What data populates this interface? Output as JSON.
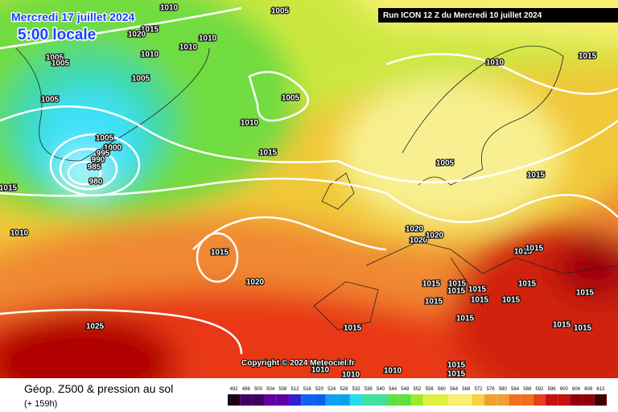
{
  "header": {
    "date": "Mercredi 17 juillet 2024",
    "time": "5:00 locale",
    "run": "Run ICON 12 Z du Mercredi 10 juillet 2024"
  },
  "copyright": "Copyright © 2024 Meteociel.fr",
  "footer": {
    "title": "Géop. Z500 & pression au sol",
    "lead": "(+ 159h)"
  },
  "isobar_labels": [
    1010,
    1005,
    1015,
    1020,
    1010,
    1010,
    1010,
    1005,
    1005,
    1005,
    1005,
    1005,
    1010,
    1005,
    1000,
    995,
    990,
    985,
    980,
    1015,
    1015,
    1010,
    1015,
    1005,
    1015,
    1010,
    1015,
    1020,
    1020,
    1020,
    1020,
    1015,
    1015,
    1015,
    1015,
    1015,
    1015,
    1015,
    1015,
    1015,
    1015,
    1015,
    1015,
    1015,
    1015,
    1015,
    1025,
    1010,
    1010,
    1010,
    1015,
    1015
  ],
  "scale": {
    "values": [
      492,
      496,
      500,
      504,
      508,
      512,
      516,
      520,
      524,
      528,
      532,
      536,
      540,
      544,
      548,
      552,
      556,
      560,
      564,
      568,
      572,
      576,
      580,
      584,
      588,
      592,
      596,
      600,
      604,
      608,
      612
    ]
  }
}
